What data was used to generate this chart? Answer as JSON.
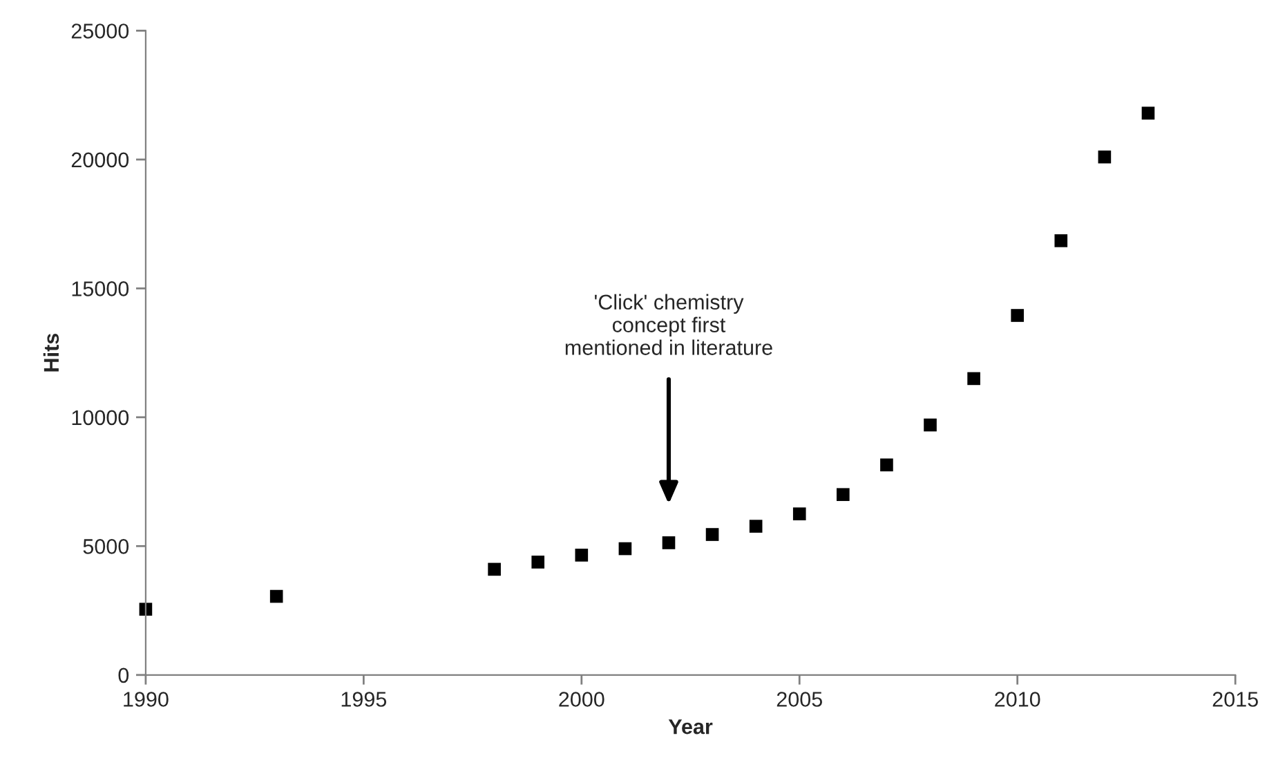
{
  "chart_data": {
    "type": "scatter",
    "xlabel": "Year",
    "ylabel": "Hits",
    "x": [
      1990,
      1993,
      1998,
      1999,
      2000,
      2001,
      2002,
      2003,
      2004,
      2005,
      2006,
      2007,
      2008,
      2009,
      2010,
      2011,
      2012,
      2013
    ],
    "series": [
      {
        "color": "#000000",
        "values": [
          2550,
          3050,
          4100,
          4380,
          4650,
          4900,
          5130,
          5450,
          5770,
          6250,
          7000,
          8150,
          9700,
          11500,
          13950,
          16850,
          20100,
          21800
        ]
      }
    ],
    "marker": "square",
    "xlim": [
      1990,
      2015
    ],
    "xticks": [
      1990,
      1995,
      2000,
      2005,
      2010,
      2015
    ],
    "ylim": [
      0,
      25000
    ],
    "yticks": [
      0,
      5000,
      10000,
      15000,
      20000,
      25000
    ],
    "grid": false,
    "legend": false,
    "annotations": [
      "'Click' chemistry\nconcept first\nmentioned in literature"
    ]
  }
}
